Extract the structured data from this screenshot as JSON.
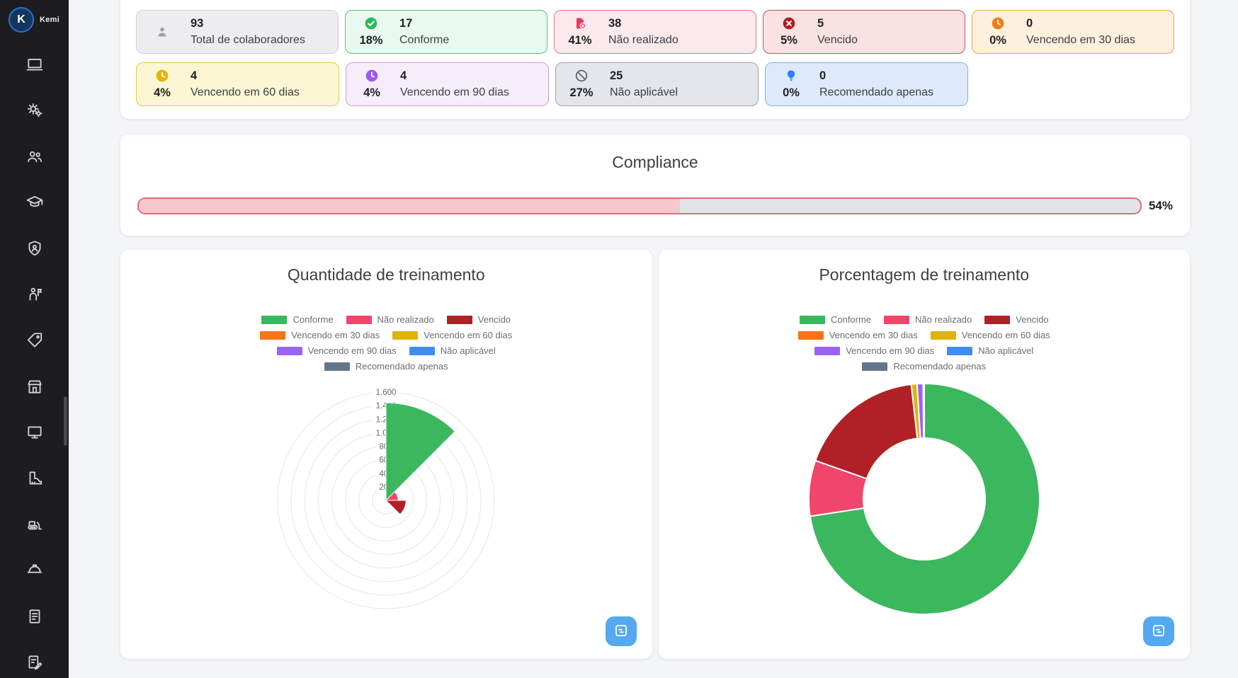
{
  "sidebar": {
    "logo": {
      "initial": "K",
      "label": "Kemi"
    },
    "items": [
      {
        "icon": "laptop"
      },
      {
        "icon": "gears"
      },
      {
        "icon": "users"
      },
      {
        "icon": "graduation-cap"
      },
      {
        "icon": "shield-user"
      },
      {
        "icon": "person-flag"
      },
      {
        "icon": "tag"
      },
      {
        "icon": "store"
      },
      {
        "icon": "monitor"
      },
      {
        "icon": "boot"
      },
      {
        "icon": "bulldozer"
      },
      {
        "icon": "hard-hat"
      },
      {
        "icon": "document-list"
      },
      {
        "icon": "document-pen"
      }
    ]
  },
  "stats": {
    "rows": [
      [
        {
          "value": "93",
          "percent": null,
          "label": "Total de colaboradores",
          "icon": "user",
          "bg": "#ededf0",
          "border": "#d0d3d8",
          "icon_color": "#9aa0a6"
        },
        {
          "value": "17",
          "percent": "18%",
          "label": "Conforme",
          "icon": "check-circle",
          "bg": "#e9f9ef",
          "border": "#57c083",
          "icon_color": "#2eb85c"
        },
        {
          "value": "38",
          "percent": "41%",
          "label": "Não realizado",
          "icon": "file-x",
          "bg": "#fbe9ec",
          "border": "#ea7385",
          "icon_color": "#e9395f"
        },
        {
          "value": "5",
          "percent": "5%",
          "label": "Vencido",
          "icon": "x-circle",
          "bg": "#fae2e3",
          "border": "#bf5258",
          "icon_color": "#ad1f23"
        },
        {
          "value": "0",
          "percent": "0%",
          "label": "Vencendo em 30 dias",
          "icon": "clock",
          "bg": "#fdf0dc",
          "border": "#e8a64a",
          "icon_color": "#f47b16"
        }
      ],
      [
        {
          "value": "4",
          "percent": "4%",
          "label": "Vencendo em 60 dias",
          "icon": "clock",
          "bg": "#fcf6d5",
          "border": "#dfc94d",
          "icon_color": "#e3b50d"
        },
        {
          "value": "4",
          "percent": "4%",
          "label": "Vencendo em 90 dias",
          "icon": "clock",
          "bg": "#f6edfb",
          "border": "#cf9ce4",
          "icon_color": "#9b5cf6"
        },
        {
          "value": "25",
          "percent": "27%",
          "label": "Não aplicável",
          "icon": "ban",
          "bg": "#e3e6ea",
          "border": "#9fa6ad",
          "icon_color": "#5f6368"
        },
        {
          "value": "0",
          "percent": "0%",
          "label": "Recomendado apenas",
          "icon": "bulb",
          "bg": "#dceafb",
          "border": "#82b3ea",
          "icon_color": "#2f7ef7"
        }
      ]
    ]
  },
  "compliance": {
    "title": "Compliance",
    "percent": 54,
    "percent_label": "54%"
  },
  "status_colors": [
    "#3bb75e",
    "#f1456b",
    "#b22027",
    "#f97316",
    "#dfb30f",
    "#9a63f5",
    "#3e8df5",
    "#64748b"
  ],
  "categories": [
    "Conforme",
    "Não realizado",
    "Vencido",
    "Vencendo em 30 dias",
    "Vencendo em 60 dias",
    "Vencendo em 90 dias",
    "Não aplicável",
    "Recomendado apenas"
  ],
  "chart_data": [
    {
      "type": "polarArea",
      "title": "Quantidade de treinamento",
      "categories": [
        "Conforme",
        "Não realizado",
        "Vencido",
        "Vencendo em 30 dias",
        "Vencendo em 60 dias",
        "Vencendo em 90 dias",
        "Não aplicável",
        "Recomendado apenas"
      ],
      "values": [
        1440,
        180,
        295,
        0,
        0,
        0,
        0,
        0
      ],
      "colors": [
        "#3bb75e",
        "#f1456b",
        "#b22027",
        "#f97316",
        "#dfb30f",
        "#9a63f5",
        "#3e8df5",
        "#64748b"
      ],
      "r_ticks": [
        "200",
        "400",
        "600",
        "800",
        "1.000",
        "1.200",
        "1.400",
        "1.600"
      ],
      "r_max": 1600,
      "grid": true,
      "legend_position": "top"
    },
    {
      "type": "doughnut",
      "title": "Porcentagem de treinamento",
      "categories": [
        "Conforme",
        "Não realizado",
        "Vencido",
        "Vencendo em 30 dias",
        "Vencendo em 60 dias",
        "Vencendo em 90 dias",
        "Não aplicável",
        "Recomendado apenas"
      ],
      "values": [
        72.6,
        7.8,
        17.8,
        0,
        0.8,
        0.85,
        0,
        0.15
      ],
      "colors": [
        "#3bb75e",
        "#f1456b",
        "#b22027",
        "#f97316",
        "#dfb30f",
        "#9a63f5",
        "#3e8df5",
        "#64748b"
      ],
      "legend_position": "top"
    }
  ],
  "fab": {
    "icon": "report"
  }
}
